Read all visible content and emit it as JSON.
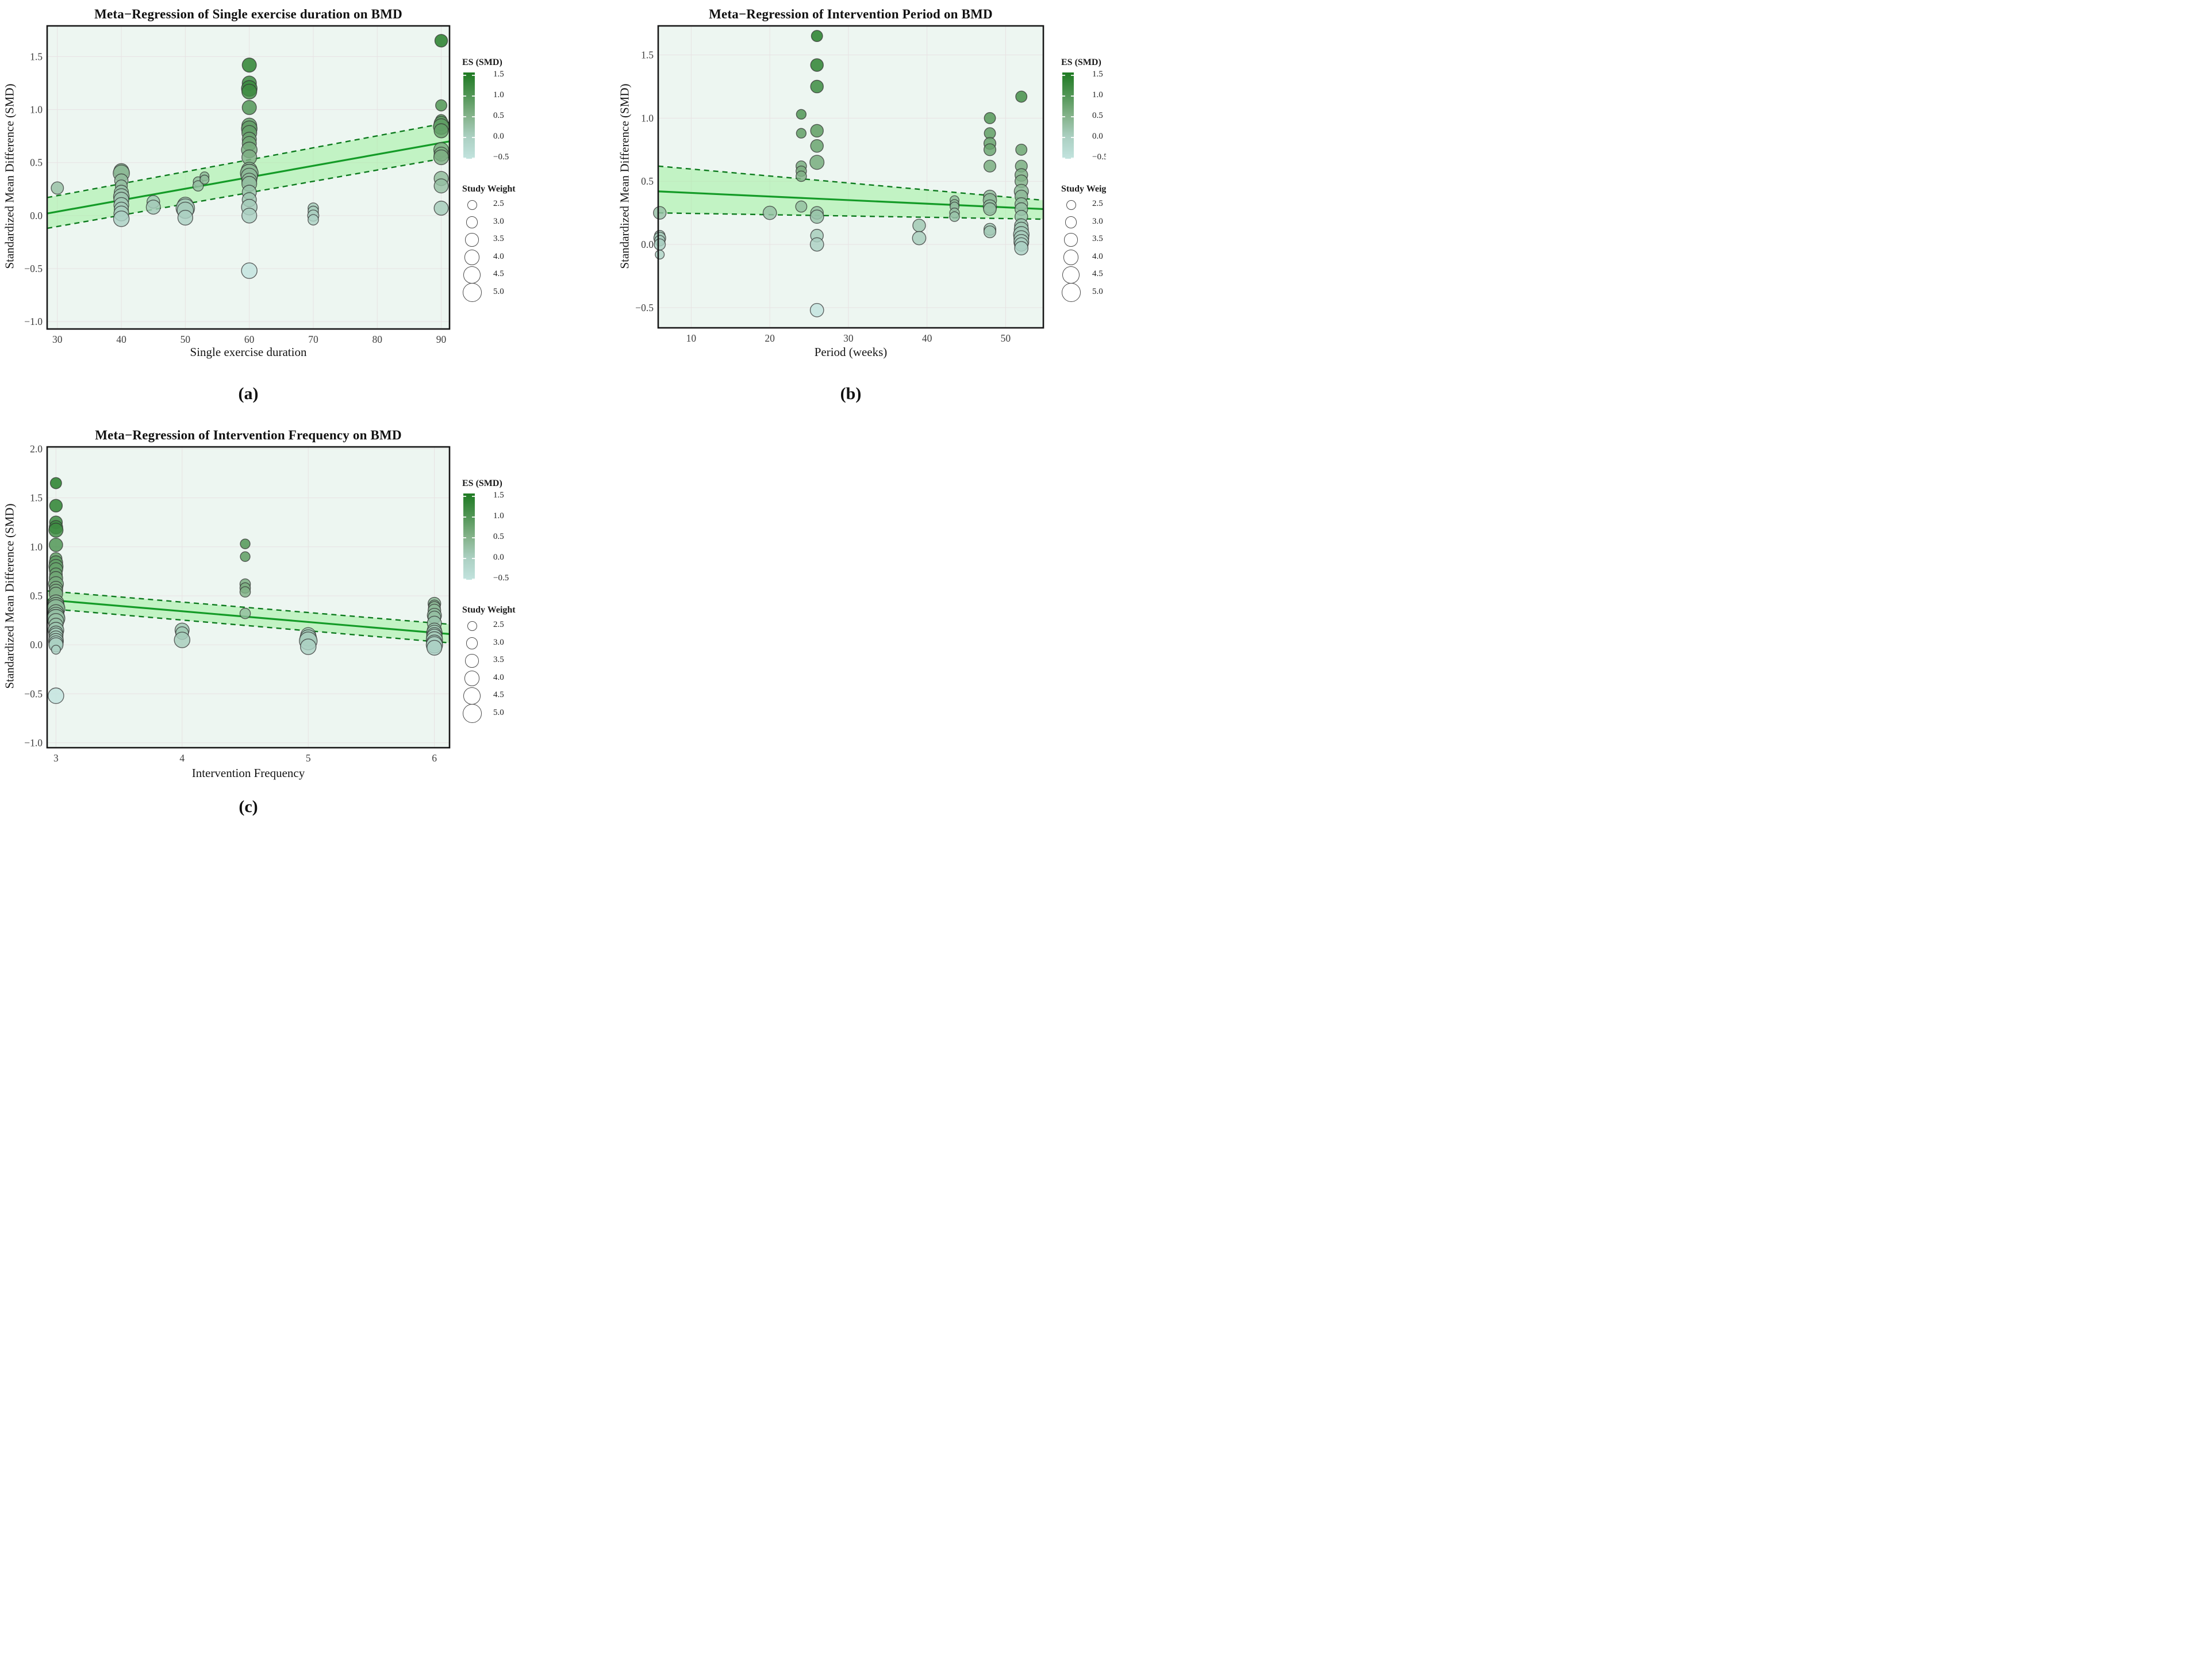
{
  "figure": {
    "background": "#ffffff",
    "colors": {
      "panel_bg": "#edf6f1",
      "grid": "#e7e2e3",
      "frame": "#161616",
      "regression_line": "#149b27",
      "ci_dashed": "#0c7a1d",
      "ci_band": "#97ef97",
      "bubble_stroke": "#333333",
      "colorbar_top": "#1e7a22",
      "colorbar_mid": "#83b289",
      "colorbar_bottom": "#c2e3de"
    }
  },
  "legend": {
    "es_title": "ES (SMD)",
    "es_ticks": [
      1.5,
      1.0,
      0.5,
      0.0,
      -0.5
    ],
    "weight_title": "Study Weight",
    "weights": [
      2.5,
      3.0,
      3.5,
      4.0,
      4.5,
      5.0
    ]
  },
  "chart_data": [
    {
      "id": "a",
      "type": "scatter",
      "panel_label": "(a)",
      "title": "Meta−Regression of Single exercise duration on BMD",
      "xlabel": "Single exercise duration",
      "ylabel": "Standardized Mean Difference (SMD)",
      "x_ticks": [
        30,
        40,
        50,
        60,
        70,
        80,
        90
      ],
      "y_ticks": [
        1.5,
        1.0,
        0.5,
        0.0,
        -0.5,
        -1.0
      ],
      "xlim": [
        28.4,
        91.3
      ],
      "ylim": [
        -1.07,
        1.79
      ],
      "grid": true,
      "legend_position": "right",
      "regression": {
        "x": [
          28.4,
          91.3
        ],
        "mean": [
          0.02,
          0.7
        ],
        "upper": [
          0.17,
          0.88
        ],
        "lower": [
          -0.12,
          0.55
        ]
      },
      "points": [
        [
          30,
          0.26,
          3.5
        ],
        [
          40,
          0.42,
          4.2
        ],
        [
          40,
          0.4,
          4.6
        ],
        [
          40,
          0.33,
          3.8
        ],
        [
          40,
          0.28,
          3.4
        ],
        [
          40,
          0.22,
          4.0
        ],
        [
          40,
          0.18,
          4.4
        ],
        [
          40,
          0.15,
          4.2
        ],
        [
          40,
          0.1,
          4.2
        ],
        [
          40,
          0.06,
          4.0
        ],
        [
          40,
          0.02,
          4.2
        ],
        [
          40,
          -0.03,
          4.4
        ],
        [
          45,
          0.13,
          3.6
        ],
        [
          45,
          0.08,
          4.0
        ],
        [
          50,
          0.1,
          4.4
        ],
        [
          50,
          0.07,
          5.2
        ],
        [
          50,
          0.05,
          4.6
        ],
        [
          50,
          -0.02,
          4.2
        ],
        [
          52,
          0.32,
          2.8
        ],
        [
          52,
          0.28,
          3.0
        ],
        [
          53,
          0.37,
          2.6
        ],
        [
          53,
          0.34,
          2.6
        ],
        [
          60,
          1.42,
          4.0
        ],
        [
          60,
          1.25,
          4.0
        ],
        [
          60,
          1.2,
          4.4
        ],
        [
          60,
          1.17,
          4.2
        ],
        [
          60,
          1.02,
          4.0
        ],
        [
          60,
          0.85,
          4.2
        ],
        [
          60,
          0.82,
          4.4
        ],
        [
          60,
          0.78,
          4.2
        ],
        [
          60,
          0.72,
          4.0
        ],
        [
          60,
          0.68,
          4.0
        ],
        [
          60,
          0.62,
          4.4
        ],
        [
          60,
          0.55,
          4.2
        ],
        [
          60,
          0.43,
          4.4
        ],
        [
          60,
          0.4,
          5.0
        ],
        [
          60,
          0.37,
          4.6
        ],
        [
          60,
          0.33,
          4.2
        ],
        [
          60,
          0.3,
          4.2
        ],
        [
          60,
          0.22,
          4.0
        ],
        [
          60,
          0.15,
          4.0
        ],
        [
          60,
          0.08,
          4.4
        ],
        [
          60,
          0.0,
          4.2
        ],
        [
          60,
          -0.52,
          4.4
        ],
        [
          70,
          0.07,
          3.0
        ],
        [
          70,
          0.04,
          3.0
        ],
        [
          70,
          0.0,
          3.2
        ],
        [
          70,
          -0.04,
          3.0
        ],
        [
          90,
          1.65,
          3.6
        ],
        [
          90,
          1.04,
          3.2
        ],
        [
          90,
          0.9,
          3.2
        ],
        [
          90,
          0.87,
          4.0
        ],
        [
          90,
          0.84,
          4.4
        ],
        [
          90,
          0.8,
          4.0
        ],
        [
          90,
          0.62,
          4.2
        ],
        [
          90,
          0.58,
          4.0
        ],
        [
          90,
          0.55,
          4.2
        ],
        [
          90,
          0.35,
          4.0
        ],
        [
          90,
          0.28,
          4.0
        ],
        [
          90,
          0.07,
          4.0
        ]
      ]
    },
    {
      "id": "b",
      "type": "scatter",
      "panel_label": "(b)",
      "title": "Meta−Regression of Intervention Period on BMD",
      "xlabel": "Period (weeks)",
      "ylabel": "Standardized Mean Difference (SMD)",
      "x_ticks": [
        10,
        20,
        30,
        40,
        50
      ],
      "y_ticks": [
        1.5,
        1.0,
        0.5,
        0.0,
        -0.5
      ],
      "xlim": [
        5.8,
        54.8
      ],
      "ylim": [
        -0.66,
        1.73
      ],
      "grid": true,
      "legend_position": "right",
      "regression": {
        "x": [
          5.8,
          54.8
        ],
        "mean": [
          0.42,
          0.28
        ],
        "upper": [
          0.62,
          0.35
        ],
        "lower": [
          0.25,
          0.2
        ]
      },
      "points": [
        [
          6,
          0.25,
          3.6
        ],
        [
          6,
          0.07,
          3.0
        ],
        [
          6,
          0.05,
          3.4
        ],
        [
          6,
          0.03,
          3.0
        ],
        [
          6,
          0.0,
          3.2
        ],
        [
          6,
          -0.08,
          2.6
        ],
        [
          20,
          0.25,
          3.8
        ],
        [
          24,
          1.03,
          2.8
        ],
        [
          24,
          0.88,
          2.8
        ],
        [
          24,
          0.62,
          3.0
        ],
        [
          24,
          0.58,
          3.0
        ],
        [
          24,
          0.54,
          3.0
        ],
        [
          24,
          0.3,
          3.2
        ],
        [
          26,
          1.65,
          3.2
        ],
        [
          26,
          1.42,
          3.6
        ],
        [
          26,
          1.25,
          3.6
        ],
        [
          26,
          0.9,
          3.6
        ],
        [
          26,
          0.78,
          3.6
        ],
        [
          26,
          0.65,
          4.0
        ],
        [
          26,
          0.25,
          3.6
        ],
        [
          26,
          0.22,
          3.8
        ],
        [
          26,
          0.07,
          3.6
        ],
        [
          26,
          0.0,
          3.8
        ],
        [
          26,
          -0.52,
          3.8
        ],
        [
          39,
          0.15,
          3.6
        ],
        [
          39,
          0.05,
          3.8
        ],
        [
          43.5,
          0.35,
          2.6
        ],
        [
          43.5,
          0.32,
          2.6
        ],
        [
          43.5,
          0.3,
          2.6
        ],
        [
          43.5,
          0.25,
          2.8
        ],
        [
          43.5,
          0.22,
          2.8
        ],
        [
          48,
          1.0,
          3.2
        ],
        [
          48,
          0.88,
          3.2
        ],
        [
          48,
          0.8,
          3.4
        ],
        [
          48,
          0.75,
          3.4
        ],
        [
          48,
          0.62,
          3.4
        ],
        [
          48,
          0.38,
          3.6
        ],
        [
          48,
          0.35,
          3.8
        ],
        [
          48,
          0.3,
          3.8
        ],
        [
          48,
          0.28,
          3.6
        ],
        [
          48,
          0.12,
          3.4
        ],
        [
          48,
          0.1,
          3.4
        ],
        [
          52,
          1.17,
          3.2
        ],
        [
          52,
          0.75,
          3.2
        ],
        [
          52,
          0.62,
          3.4
        ],
        [
          52,
          0.55,
          3.6
        ],
        [
          52,
          0.5,
          3.6
        ],
        [
          52,
          0.42,
          4.0
        ],
        [
          52,
          0.38,
          3.6
        ],
        [
          52,
          0.32,
          3.6
        ],
        [
          52,
          0.28,
          3.6
        ],
        [
          52,
          0.22,
          3.6
        ],
        [
          52,
          0.15,
          3.8
        ],
        [
          52,
          0.12,
          4.0
        ],
        [
          52,
          0.08,
          4.4
        ],
        [
          52,
          0.05,
          4.2
        ],
        [
          52,
          0.02,
          4.2
        ],
        [
          52,
          0.0,
          3.8
        ],
        [
          52,
          -0.03,
          3.8
        ]
      ]
    },
    {
      "id": "c",
      "type": "scatter",
      "panel_label": "(c)",
      "title": "Meta−Regression of Intervention Frequency on BMD",
      "xlabel": "Intervention Frequency",
      "ylabel": "Standardized Mean Difference (SMD)",
      "x_ticks": [
        3,
        4,
        5,
        6
      ],
      "y_ticks": [
        2.0,
        1.5,
        1.0,
        0.5,
        0.0,
        -0.5,
        -1.0
      ],
      "xlim": [
        2.93,
        6.12
      ],
      "ylim": [
        -1.05,
        2.02
      ],
      "grid": true,
      "legend_position": "right",
      "regression": {
        "x": [
          2.93,
          6.12
        ],
        "mean": [
          0.46,
          0.11
        ],
        "upper": [
          0.55,
          0.21
        ],
        "lower": [
          0.37,
          0.02
        ]
      },
      "points": [
        [
          3,
          1.65,
          3.2
        ],
        [
          3,
          1.42,
          3.6
        ],
        [
          3,
          1.25,
          3.6
        ],
        [
          3,
          1.2,
          3.8
        ],
        [
          3,
          1.17,
          4.0
        ],
        [
          3,
          1.02,
          3.8
        ],
        [
          3,
          0.88,
          3.4
        ],
        [
          3,
          0.84,
          3.8
        ],
        [
          3,
          0.8,
          4.0
        ],
        [
          3,
          0.77,
          3.8
        ],
        [
          3,
          0.72,
          3.6
        ],
        [
          3,
          0.68,
          3.8
        ],
        [
          3,
          0.62,
          4.2
        ],
        [
          3,
          0.58,
          3.8
        ],
        [
          3,
          0.55,
          3.8
        ],
        [
          3,
          0.52,
          3.8
        ],
        [
          3,
          0.43,
          4.4
        ],
        [
          3,
          0.4,
          4.6
        ],
        [
          3,
          0.37,
          5.0
        ],
        [
          3,
          0.33,
          4.4
        ],
        [
          3,
          0.3,
          4.6
        ],
        [
          3,
          0.27,
          5.0
        ],
        [
          3,
          0.24,
          4.4
        ],
        [
          3,
          0.2,
          4.0
        ],
        [
          3,
          0.15,
          4.4
        ],
        [
          3,
          0.12,
          4.0
        ],
        [
          3,
          0.1,
          4.0
        ],
        [
          3,
          0.07,
          4.0
        ],
        [
          3,
          0.04,
          4.2
        ],
        [
          3,
          0.02,
          4.0
        ],
        [
          3,
          0.0,
          4.0
        ],
        [
          3,
          -0.05,
          2.6
        ],
        [
          3,
          -0.52,
          4.4
        ],
        [
          4,
          0.15,
          4.0
        ],
        [
          4,
          0.12,
          3.6
        ],
        [
          4,
          0.05,
          4.4
        ],
        [
          4.5,
          1.03,
          2.8
        ],
        [
          4.5,
          0.9,
          2.8
        ],
        [
          4.5,
          0.62,
          3.0
        ],
        [
          4.5,
          0.58,
          3.0
        ],
        [
          4.5,
          0.54,
          3.0
        ],
        [
          4.5,
          0.32,
          3.0
        ],
        [
          5,
          0.1,
          4.2
        ],
        [
          5,
          0.07,
          4.6
        ],
        [
          5,
          0.04,
          5.0
        ],
        [
          5,
          -0.02,
          4.4
        ],
        [
          6,
          0.42,
          3.6
        ],
        [
          6,
          0.4,
          3.2
        ],
        [
          6,
          0.38,
          3.4
        ],
        [
          6,
          0.35,
          3.6
        ],
        [
          6,
          0.3,
          4.0
        ],
        [
          6,
          0.28,
          3.6
        ],
        [
          6,
          0.22,
          4.0
        ],
        [
          6,
          0.15,
          4.0
        ],
        [
          6,
          0.12,
          4.4
        ],
        [
          6,
          0.1,
          4.2
        ],
        [
          6,
          0.08,
          4.4
        ],
        [
          6,
          0.05,
          4.6
        ],
        [
          6,
          0.02,
          4.4
        ],
        [
          6,
          0.0,
          4.6
        ],
        [
          6,
          -0.03,
          4.2
        ]
      ]
    }
  ]
}
